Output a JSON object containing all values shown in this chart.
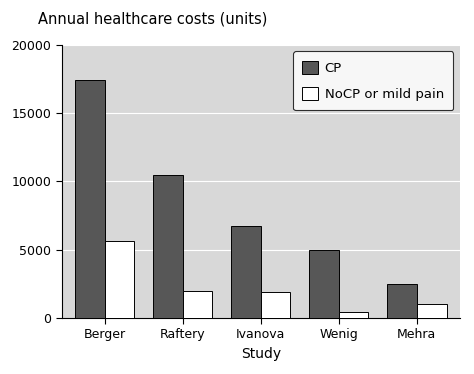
{
  "title": "Annual healthcare costs (units)",
  "categories": [
    "Berger",
    "Raftery",
    "Ivanova",
    "Wenig",
    "Mehra"
  ],
  "xlabel": "Study",
  "cp_values": [
    17400,
    10500,
    6700,
    5000,
    2500
  ],
  "nocp_values": [
    5600,
    2000,
    1900,
    400,
    1000
  ],
  "cp_color": "#575757",
  "nocp_color": "#ffffff",
  "bar_edge_color": "#000000",
  "ylim": [
    0,
    20000
  ],
  "yticks": [
    0,
    5000,
    10000,
    15000,
    20000
  ],
  "legend_labels": [
    "CP",
    "NoCP or mild pain"
  ],
  "background_color": "#d8d8d8",
  "outer_background": "#ffffff",
  "bar_width": 0.38,
  "title_fontsize": 10.5,
  "axis_fontsize": 10,
  "tick_fontsize": 9,
  "legend_fontsize": 9.5,
  "grid_color_light": "#e8e8e8",
  "grid_color_dark": "#d0d0d0"
}
